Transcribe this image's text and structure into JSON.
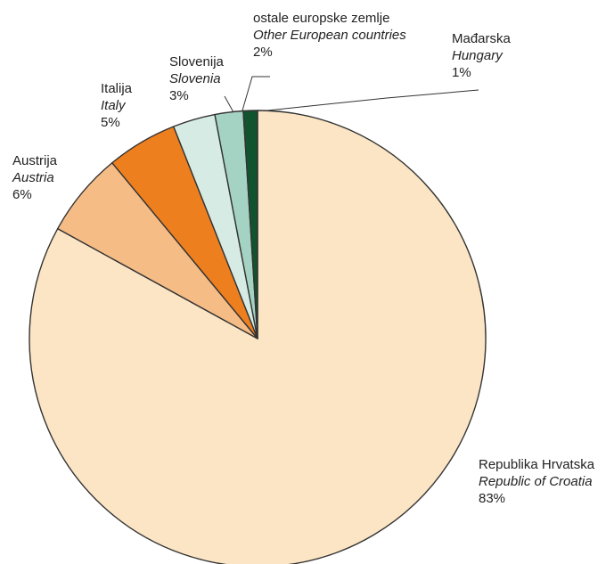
{
  "chart_data": {
    "type": "pie",
    "title": "",
    "slices": [
      {
        "label_hr": "Republika Hrvatska",
        "label_en": "Republic of Croatia",
        "value": 83,
        "display": "83%",
        "color": "#fce5c4"
      },
      {
        "label_hr": "Austrija",
        "label_en": "Austria",
        "value": 6,
        "display": "6%",
        "color": "#f5bc86"
      },
      {
        "label_hr": "Italija",
        "label_en": "Italy",
        "value": 5,
        "display": "5%",
        "color": "#ee7f1f"
      },
      {
        "label_hr": "Slovenija",
        "label_en": "Slovenia",
        "value": 3,
        "display": "3%",
        "color": "#d5ebe3"
      },
      {
        "label_hr": "ostale europske zemlje",
        "label_en": "Other European countries",
        "value": 2,
        "display": "2%",
        "color": "#a5d3c3"
      },
      {
        "label_hr": "Mađarska",
        "label_en": "Hungary",
        "value": 1,
        "display": "1%",
        "color": "#12532f"
      }
    ],
    "stroke_color": "#333333",
    "legend": "none"
  }
}
